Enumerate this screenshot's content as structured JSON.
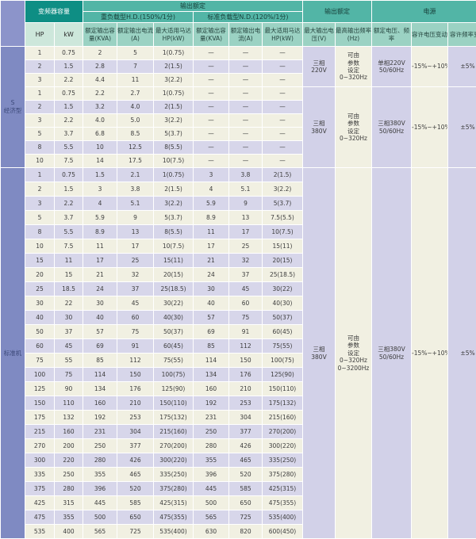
{
  "header": {
    "inverter_capacity": "变频器容量",
    "output_rating": "输出额定",
    "output_rating_2": "输出额定",
    "power_supply": "电源",
    "heavy_duty_group": "重负载型H.D.(150%/1分)",
    "normal_duty_group": "标准负载型N.D.(120%/1分)",
    "col_hp": "HP",
    "col_kw": "kW",
    "col_capacity": "额定输出容量(KVA)",
    "col_current": "额定输出电流(A)",
    "col_motor": "最大适用马达HP(kW)",
    "col_max_voltage": "最大输出电压(V)",
    "col_max_freq": "最高输出频率(Hz)",
    "col_rated_vf": "额定电压、频率",
    "col_voltage_tol": "容许电压变动",
    "col_freq_tol": "容许频率变动"
  },
  "colors": {
    "teal_dark": "#0e8e84",
    "teal_group": "#52b5a6",
    "teal_sub": "#9bd2c3",
    "mint": "#cde7db",
    "sidebar_blue": "#7f8ac2",
    "row_cream": "#f1f0e2",
    "row_lavender": "#d7d6ea"
  },
  "sections": [
    {
      "label_lines": [
        "S",
        "经济型"
      ],
      "rows": [
        [
          "1",
          "0.75",
          "2",
          "5",
          "1(0.75)",
          "—",
          "—",
          "—"
        ],
        [
          "2",
          "1.5",
          "2.8",
          "7",
          "2(1.5)",
          "—",
          "—",
          "—"
        ],
        [
          "3",
          "2.2",
          "4.4",
          "11",
          "3(2.2)",
          "—",
          "—",
          "—"
        ],
        [
          "1",
          "0.75",
          "2.2",
          "2.7",
          "1(0.75)",
          "—",
          "—",
          "—"
        ],
        [
          "2",
          "1.5",
          "3.2",
          "4.0",
          "2(1.5)",
          "—",
          "—",
          "—"
        ],
        [
          "3",
          "2.2",
          "4.0",
          "5.0",
          "3(2.2)",
          "—",
          "—",
          "—"
        ],
        [
          "5",
          "3.7",
          "6.8",
          "8.5",
          "5(3.7)",
          "—",
          "—",
          "—"
        ],
        [
          "8",
          "5.5",
          "10",
          "12.5",
          "8(5.5)",
          "—",
          "—",
          "—"
        ],
        [
          "10",
          "7.5",
          "14",
          "17.5",
          "10(7.5)",
          "—",
          "—",
          "—"
        ]
      ],
      "groups": [
        {
          "start": 0,
          "span": 3,
          "voltage_lines": [
            "三相",
            "220V"
          ],
          "freq_lines": [
            "可由",
            "参数",
            "设定",
            "0~320Hz"
          ],
          "rated_lines": [
            "单相220V",
            "50/60Hz"
          ],
          "voltage_tol": "-15%~+10%",
          "freq_tol": "±5%"
        },
        {
          "start": 3,
          "span": 6,
          "voltage_lines": [
            "三相",
            "380V"
          ],
          "freq_lines": [
            "可由",
            "参数",
            "设定",
            "0~320Hz"
          ],
          "rated_lines": [
            "三相380V",
            "50/60Hz"
          ],
          "voltage_tol": "-15%~+10%",
          "freq_tol": "±5%"
        }
      ]
    },
    {
      "label_lines": [
        "标准机"
      ],
      "rows": [
        [
          "1",
          "0.75",
          "1.5",
          "2.1",
          "1(0.75)",
          "3",
          "3.8",
          "2(1.5)"
        ],
        [
          "2",
          "1.5",
          "3",
          "3.8",
          "2(1.5)",
          "4",
          "5.1",
          "3(2.2)"
        ],
        [
          "3",
          "2.2",
          "4",
          "5.1",
          "3(2.2)",
          "5.9",
          "9",
          "5(3.7)"
        ],
        [
          "5",
          "3.7",
          "5.9",
          "9",
          "5(3.7)",
          "8.9",
          "13",
          "7.5(5.5)"
        ],
        [
          "8",
          "5.5",
          "8.9",
          "13",
          "8(5.5)",
          "11",
          "17",
          "10(7.5)"
        ],
        [
          "10",
          "7.5",
          "11",
          "17",
          "10(7.5)",
          "17",
          "25",
          "15(11)"
        ],
        [
          "15",
          "11",
          "17",
          "25",
          "15(11)",
          "21",
          "32",
          "20(15)"
        ],
        [
          "20",
          "15",
          "21",
          "32",
          "20(15)",
          "24",
          "37",
          "25(18.5)"
        ],
        [
          "25",
          "18.5",
          "24",
          "37",
          "25(18.5)",
          "30",
          "45",
          "30(22)"
        ],
        [
          "30",
          "22",
          "30",
          "45",
          "30(22)",
          "40",
          "60",
          "40(30)"
        ],
        [
          "40",
          "30",
          "40",
          "60",
          "40(30)",
          "57",
          "75",
          "50(37)"
        ],
        [
          "50",
          "37",
          "57",
          "75",
          "50(37)",
          "69",
          "91",
          "60(45)"
        ],
        [
          "60",
          "45",
          "69",
          "91",
          "60(45)",
          "85",
          "112",
          "75(55)"
        ],
        [
          "75",
          "55",
          "85",
          "112",
          "75(55)",
          "114",
          "150",
          "100(75)"
        ],
        [
          "100",
          "75",
          "114",
          "150",
          "100(75)",
          "134",
          "176",
          "125(90)"
        ],
        [
          "125",
          "90",
          "134",
          "176",
          "125(90)",
          "160",
          "210",
          "150(110)"
        ],
        [
          "150",
          "110",
          "160",
          "210",
          "150(110)",
          "192",
          "253",
          "175(132)"
        ],
        [
          "175",
          "132",
          "192",
          "253",
          "175(132)",
          "231",
          "304",
          "215(160)"
        ],
        [
          "215",
          "160",
          "231",
          "304",
          "215(160)",
          "250",
          "377",
          "270(200)"
        ],
        [
          "270",
          "200",
          "250",
          "377",
          "270(200)",
          "280",
          "426",
          "300(220)"
        ],
        [
          "300",
          "220",
          "280",
          "426",
          "300(220)",
          "355",
          "465",
          "335(250)"
        ],
        [
          "335",
          "250",
          "355",
          "465",
          "335(250)",
          "396",
          "520",
          "375(280)"
        ],
        [
          "375",
          "280",
          "396",
          "520",
          "375(280)",
          "445",
          "585",
          "425(315)"
        ],
        [
          "425",
          "315",
          "445",
          "585",
          "425(315)",
          "500",
          "650",
          "475(355)"
        ],
        [
          "475",
          "355",
          "500",
          "650",
          "475(355)",
          "565",
          "725",
          "535(400)"
        ],
        [
          "535",
          "400",
          "565",
          "725",
          "535(400)",
          "630",
          "820",
          "600(450)"
        ]
      ],
      "groups": [
        {
          "start": 0,
          "span": 26,
          "voltage_lines": [
            "三相",
            "380V"
          ],
          "freq_lines": [
            "可由",
            "参数",
            "设定",
            "0~320Hz",
            "0~3200Hz"
          ],
          "rated_lines": [
            "三相380V",
            "50/60Hz"
          ],
          "voltage_tol": "-15%~+10%",
          "freq_tol": "±5%"
        }
      ]
    }
  ]
}
